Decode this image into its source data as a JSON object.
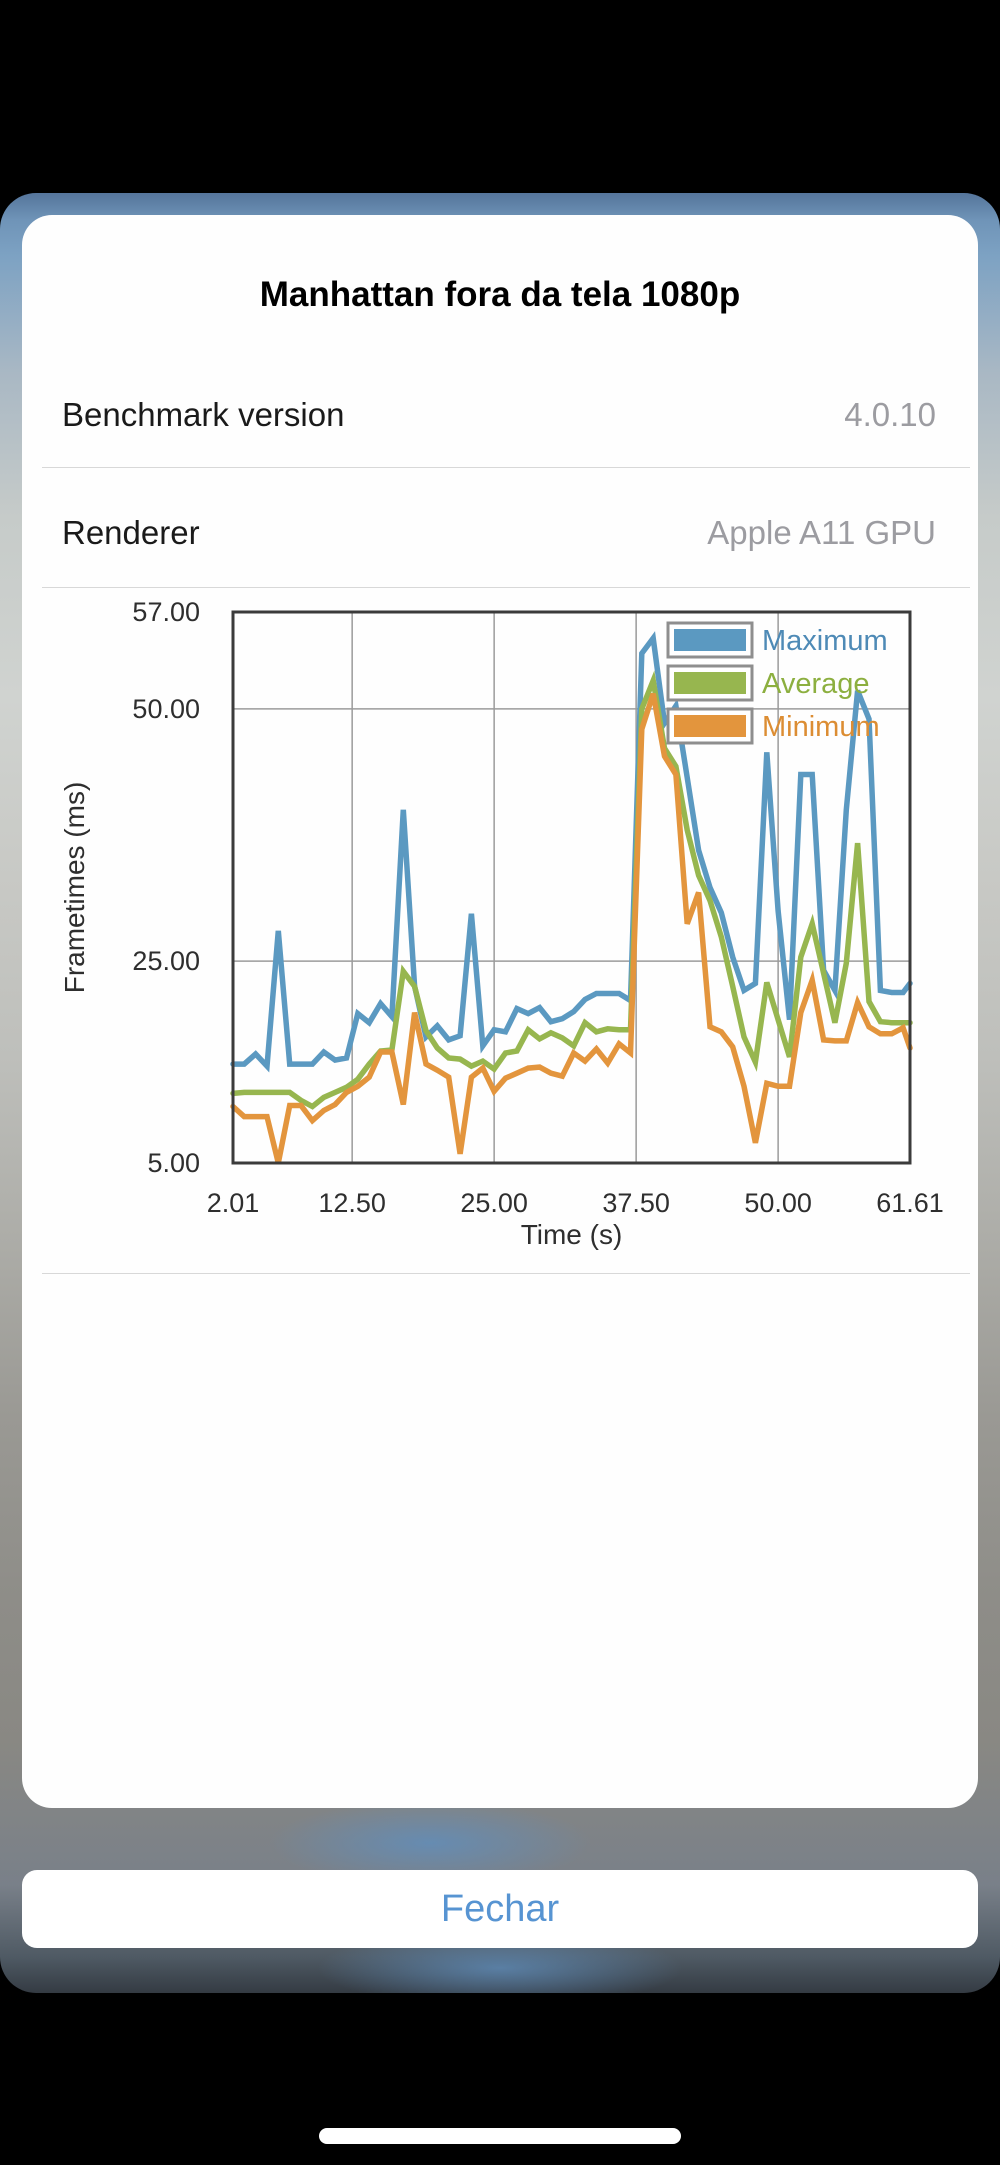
{
  "modal": {
    "title": "Manhattan fora da tela 1080p",
    "rows": [
      {
        "label": "Benchmark version",
        "value": "4.0.10"
      },
      {
        "label": "Renderer",
        "value": "Apple A11 GPU"
      }
    ]
  },
  "close": {
    "label": "Fechar"
  },
  "colors": {
    "maximum": "#5b99c1",
    "average": "#97b64f",
    "minimum": "#e3953d",
    "legend_text_maximum": "#4e8ab6",
    "legend_text_average": "#8caf3f",
    "legend_text_minimum": "#dc8d33",
    "close_button_text": "#5794d2",
    "chart_border": "#3b3b3b",
    "gridline": "#9b9b9b",
    "axis_text": "#2e2e2e"
  },
  "chart_data": {
    "type": "line",
    "xlabel": "Time (s)",
    "ylabel": "Frametimes (ms)",
    "x_range": [
      2.01,
      61.61
    ],
    "ylim": [
      5,
      57
    ],
    "y_axis": {
      "min": 5,
      "render_top": 59.6,
      "gridlines": [
        25,
        50
      ]
    },
    "x_gridlines": [
      12.5,
      25,
      37.5,
      50
    ],
    "grid": true,
    "legend_position": "top-right",
    "x_ticks": [
      {
        "label": "2.01",
        "value": 2.01
      },
      {
        "label": "12.50",
        "value": 12.5
      },
      {
        "label": "25.00",
        "value": 25
      },
      {
        "label": "37.50",
        "value": 37.5
      },
      {
        "label": "50.00",
        "value": 50
      },
      {
        "label": "61.61",
        "value": 61.61
      }
    ],
    "y_ticks": [
      {
        "label": "57.00",
        "pin": "top"
      },
      {
        "label": "50.00",
        "value": 50
      },
      {
        "label": "25.00",
        "value": 25
      },
      {
        "label": "5.00",
        "pin": "bottom"
      }
    ],
    "x": [
      2.01,
      3,
      4,
      5,
      6,
      7,
      8,
      9,
      10,
      11,
      12,
      13,
      14,
      15,
      16,
      17,
      18,
      19,
      20,
      21,
      22,
      23,
      24,
      25,
      26,
      27,
      28,
      29,
      30,
      31,
      32,
      33,
      34,
      35,
      36,
      37,
      38,
      39,
      40,
      41,
      42,
      43,
      44,
      45,
      46,
      47,
      48,
      49,
      50,
      51,
      52,
      53,
      54,
      55,
      56,
      57,
      58,
      59,
      60,
      61,
      61.61
    ],
    "series": [
      {
        "name": "Maximum",
        "color": "#5b99c1",
        "text_color": "#4e8ab6",
        "values": [
          14.8,
          14.8,
          15.8,
          14.6,
          28.0,
          14.8,
          14.8,
          14.8,
          16.0,
          15.2,
          15.4,
          19.8,
          18.9,
          20.8,
          19.5,
          40.0,
          22.5,
          17.5,
          18.6,
          17.2,
          17.6,
          29.7,
          16.6,
          18.2,
          18.0,
          20.3,
          19.8,
          20.4,
          19.0,
          19.3,
          20.0,
          21.2,
          21.8,
          21.8,
          21.8,
          21.1,
          55.5,
          57.0,
          48.6,
          50.3,
          43.2,
          36.0,
          32.3,
          29.8,
          25.4,
          22.1,
          22.8,
          45.7,
          30.0,
          19.2,
          43.5,
          43.5,
          24.1,
          22.1,
          40.0,
          51.8,
          49.0,
          22.1,
          21.9,
          21.9,
          22.8
        ]
      },
      {
        "name": "Average",
        "color": "#97b64f",
        "text_color": "#8caf3f",
        "values": [
          11.9,
          12.0,
          12.0,
          12.0,
          12.0,
          12.0,
          11.2,
          10.6,
          11.5,
          12.0,
          12.5,
          13.3,
          14.8,
          16.1,
          16.2,
          24.0,
          22.5,
          18.1,
          16.4,
          15.4,
          15.3,
          14.6,
          15.1,
          14.3,
          15.9,
          16.1,
          18.2,
          17.3,
          17.9,
          17.4,
          16.6,
          18.9,
          18.0,
          18.3,
          18.2,
          18.2,
          50.0,
          52.8,
          46.1,
          44.3,
          38.0,
          33.5,
          31.0,
          27.4,
          22.5,
          17.5,
          15.0,
          22.9,
          19.2,
          15.5,
          25.4,
          28.7,
          23.8,
          18.9,
          24.8,
          36.7,
          21.0,
          19.0,
          18.9,
          18.9,
          18.9
        ]
      },
      {
        "name": "Minimum",
        "color": "#e3953d",
        "text_color": "#dc8d33",
        "values": [
          10.6,
          9.6,
          9.6,
          9.6,
          5.0,
          10.7,
          10.7,
          9.2,
          10.2,
          10.8,
          12.0,
          12.6,
          13.5,
          16.0,
          16.0,
          10.8,
          19.9,
          14.8,
          14.2,
          13.5,
          5.9,
          13.5,
          14.4,
          12.1,
          13.4,
          13.9,
          14.4,
          14.5,
          13.9,
          13.6,
          15.9,
          15.1,
          16.3,
          14.9,
          16.8,
          15.9,
          48.0,
          51.5,
          45.3,
          43.5,
          28.7,
          31.8,
          18.5,
          18.0,
          16.5,
          12.6,
          7.0,
          12.9,
          12.6,
          12.6,
          19.9,
          23.1,
          17.2,
          17.1,
          17.1,
          20.9,
          18.5,
          17.8,
          17.8,
          18.4,
          16.4
        ]
      }
    ]
  }
}
